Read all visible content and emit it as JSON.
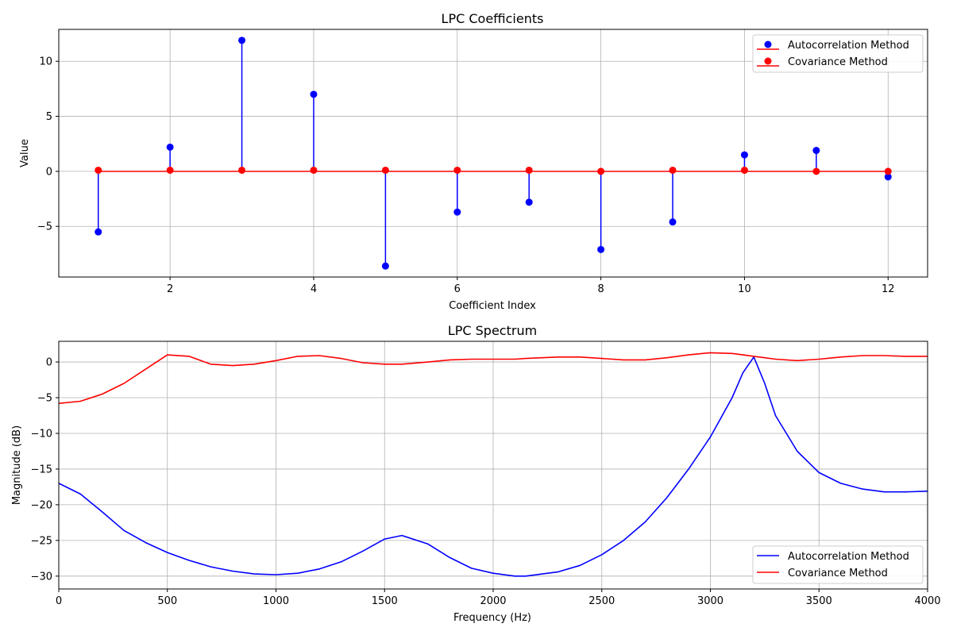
{
  "chart_data": [
    {
      "type": "stem",
      "title": "LPC Coefficients",
      "xlabel": "Coefficient Index",
      "ylabel": "Value",
      "xlim": [
        0.45,
        12.55
      ],
      "ylim": [
        -9.6,
        12.9
      ],
      "xticks": [
        2,
        4,
        6,
        8,
        10,
        12
      ],
      "yticks": [
        -5,
        0,
        5,
        10
      ],
      "grid": true,
      "legend_position": "top-right",
      "x": [
        1,
        2,
        3,
        4,
        5,
        6,
        7,
        8,
        9,
        10,
        11,
        12
      ],
      "series": [
        {
          "name": "Autocorrelation Method",
          "color": "#0000ff",
          "values": [
            -5.5,
            2.2,
            11.9,
            7.0,
            -8.6,
            -3.7,
            -2.8,
            -7.1,
            -4.6,
            1.5,
            1.9,
            -0.5
          ]
        },
        {
          "name": "Covariance Method",
          "color": "#ff0000",
          "values": [
            0.1,
            0.1,
            0.1,
            0.1,
            0.1,
            0.1,
            0.1,
            0.0,
            0.1,
            0.1,
            0.0,
            0.0
          ]
        }
      ]
    },
    {
      "type": "line",
      "title": "LPC Spectrum",
      "xlabel": "Frequency (Hz)",
      "ylabel": "Magnitude (dB)",
      "xlim": [
        0,
        4000
      ],
      "ylim": [
        -31.8,
        2.9
      ],
      "xticks": [
        0,
        500,
        1000,
        1500,
        2000,
        2500,
        3000,
        3500,
        4000
      ],
      "yticks": [
        -30,
        -25,
        -20,
        -15,
        -10,
        -5,
        0
      ],
      "grid": true,
      "legend_position": "bottom-right",
      "x": [
        0,
        100,
        200,
        300,
        400,
        500,
        600,
        700,
        800,
        900,
        1000,
        1100,
        1200,
        1300,
        1400,
        1500,
        1580,
        1700,
        1800,
        1900,
        2000,
        2100,
        2150,
        2300,
        2400,
        2500,
        2600,
        2700,
        2800,
        2900,
        3000,
        3100,
        3150,
        3200,
        3250,
        3300,
        3400,
        3500,
        3600,
        3700,
        3800,
        3900,
        4000
      ],
      "series": [
        {
          "name": "Autocorrelation Method",
          "color": "#0000ff",
          "values": [
            -17.0,
            -18.5,
            -21.0,
            -23.6,
            -25.3,
            -26.7,
            -27.8,
            -28.7,
            -29.3,
            -29.7,
            -29.8,
            -29.6,
            -29.0,
            -28.0,
            -26.5,
            -24.8,
            -24.3,
            -25.5,
            -27.4,
            -28.9,
            -29.6,
            -30.0,
            -30.0,
            -29.4,
            -28.5,
            -27.0,
            -25.0,
            -22.4,
            -19.0,
            -15.0,
            -10.5,
            -5.0,
            -1.5,
            0.7,
            -3.0,
            -7.5,
            -12.5,
            -15.5,
            -17.0,
            -17.8,
            -18.2,
            -18.2,
            -18.1
          ]
        },
        {
          "name": "Covariance Method",
          "color": "#ff0000",
          "values": [
            -5.8,
            -5.5,
            -4.5,
            -3.0,
            -1.0,
            1.0,
            0.8,
            -0.3,
            -0.5,
            -0.3,
            0.2,
            0.8,
            0.9,
            0.5,
            -0.1,
            -0.3,
            -0.3,
            0.0,
            0.3,
            0.4,
            0.4,
            0.4,
            0.5,
            0.7,
            0.7,
            0.5,
            0.3,
            0.3,
            0.6,
            1.0,
            1.3,
            1.2,
            1.0,
            0.8,
            0.6,
            0.4,
            0.2,
            0.4,
            0.7,
            0.9,
            0.9,
            0.8,
            0.8
          ]
        }
      ]
    }
  ]
}
